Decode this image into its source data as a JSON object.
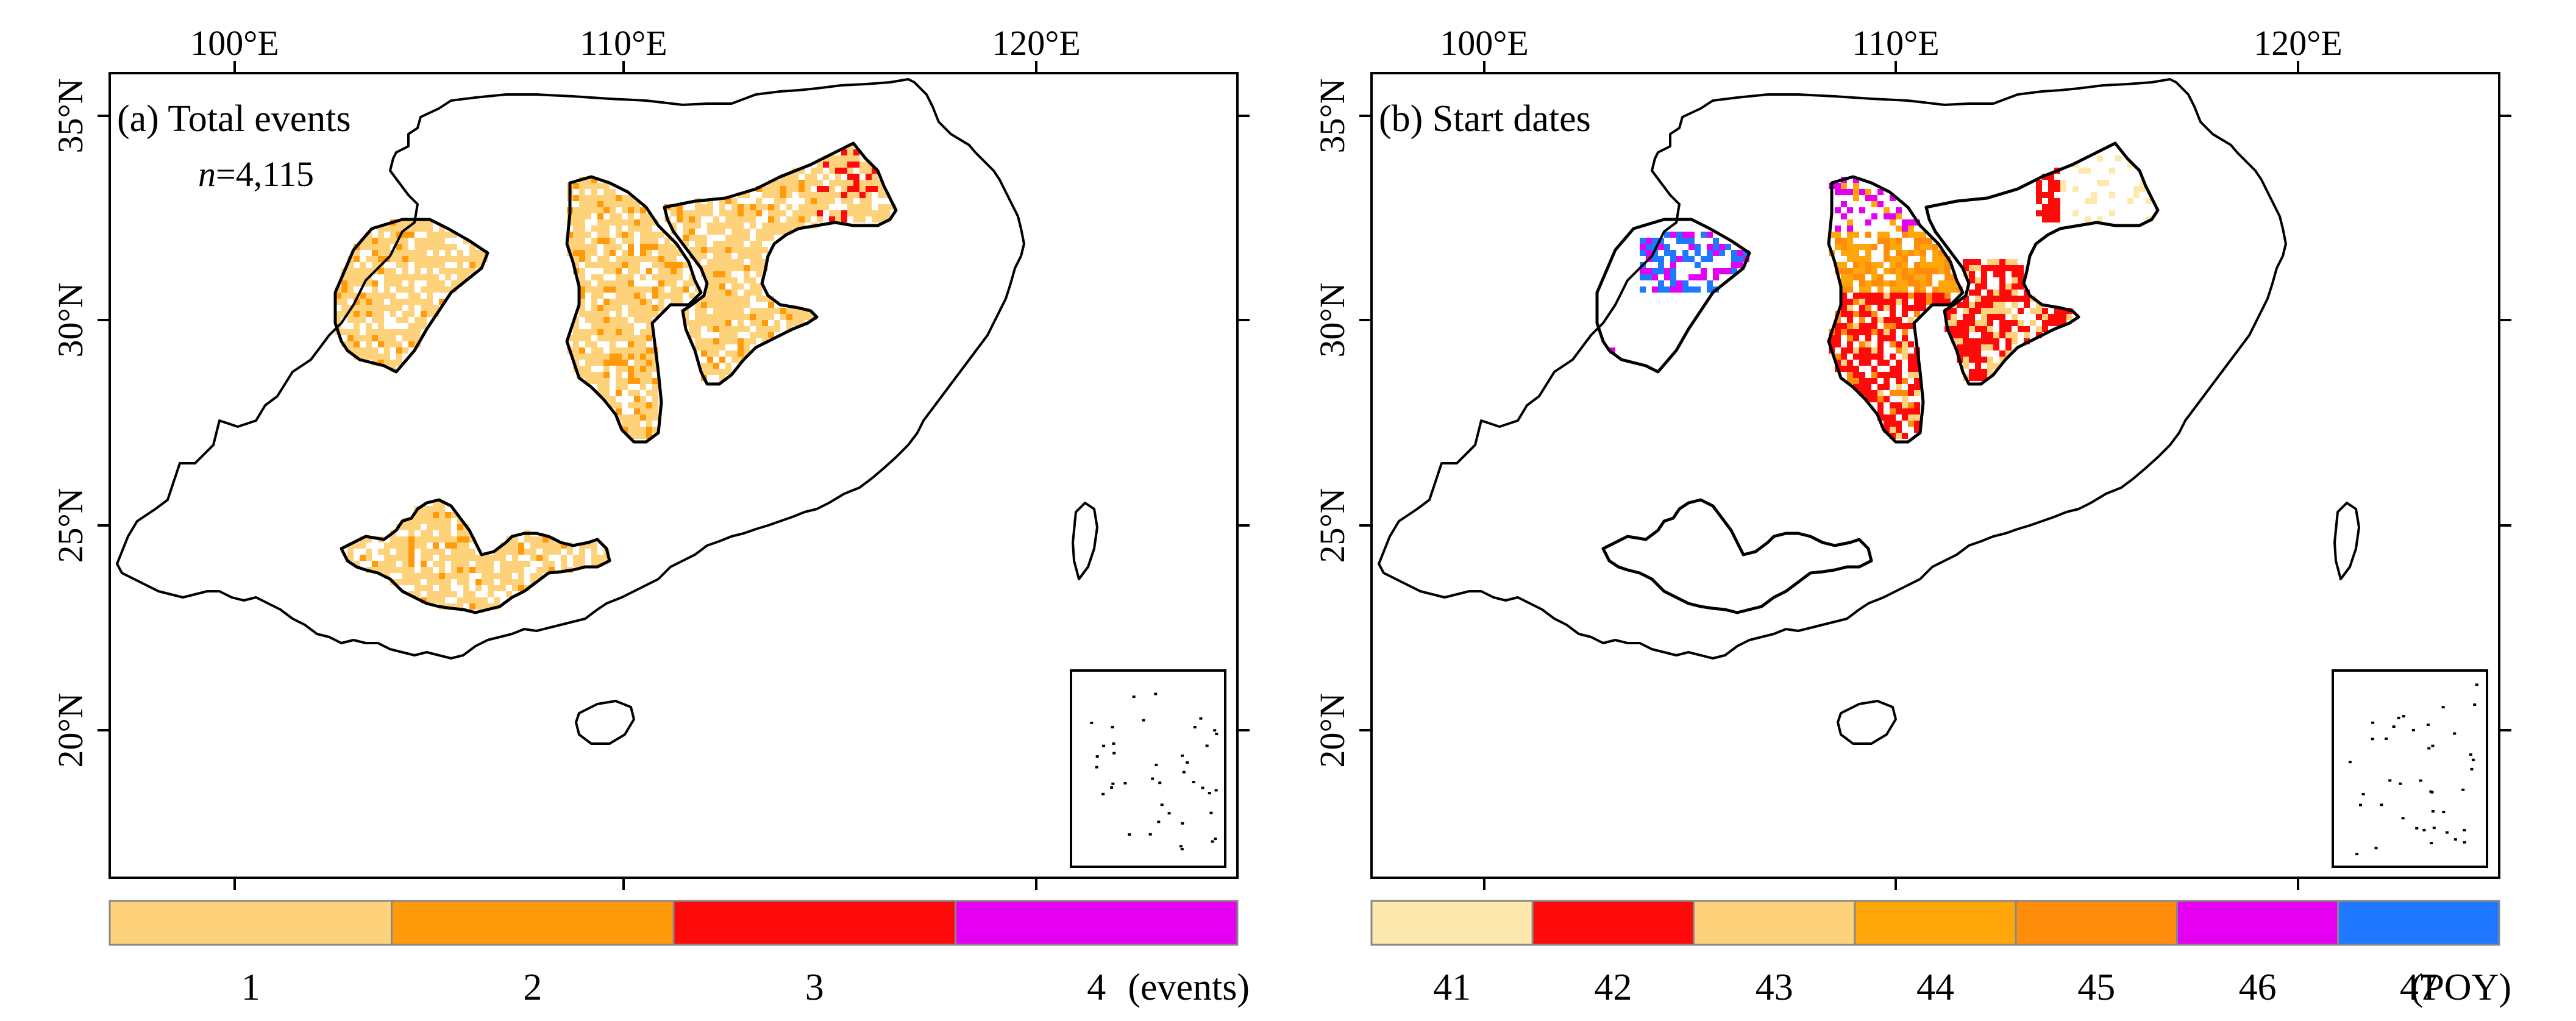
{
  "panels": [
    {
      "title": "(a) Total events",
      "n_prefix": "n",
      "n_value": "=4,115",
      "x_ticks": [
        "100°E",
        "110°E",
        "120°E"
      ],
      "y_ticks": [
        "35°N",
        "30°N",
        "25°N",
        "20°N"
      ],
      "legend": {
        "labels": [
          "1",
          "2",
          "3",
          "4"
        ],
        "colors": [
          "#fdd27a",
          "#ff9a0a",
          "#ff0a0a",
          "#e600f2"
        ],
        "unit": "(events)"
      }
    },
    {
      "title": "(b) Start dates",
      "x_ticks": [
        "100°E",
        "110°E",
        "120°E"
      ],
      "y_ticks": [
        "35°N",
        "30°N",
        "25°N",
        "20°N"
      ],
      "legend": {
        "labels": [
          "41",
          "42",
          "43",
          "44",
          "45",
          "46",
          "47"
        ],
        "colors": [
          "#fde9ad",
          "#ff0a0a",
          "#fdd27a",
          "#ffa70a",
          "#ff8c0a",
          "#e600f2",
          "#1f78ff"
        ],
        "unit": "(POY)"
      }
    }
  ]
}
